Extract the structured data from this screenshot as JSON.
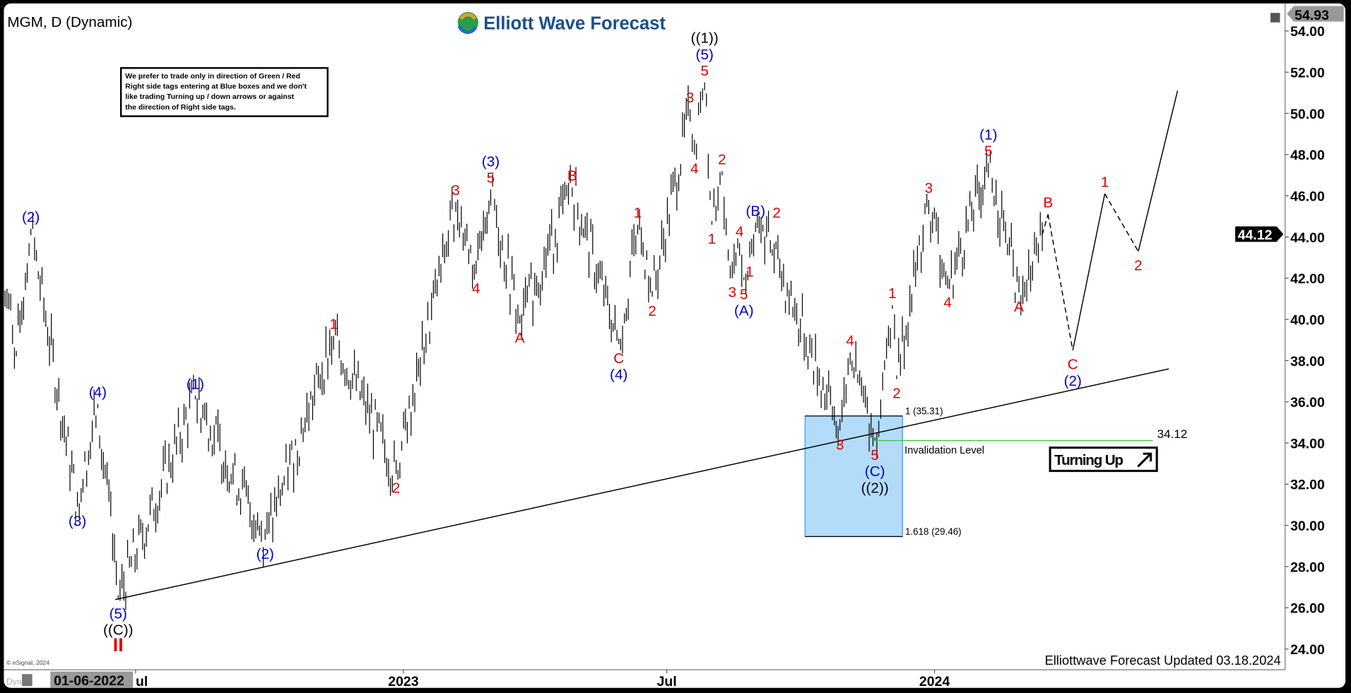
{
  "header": {
    "symbol_title": "MGM, D (Dynamic)",
    "logo_text": "Elliott Wave Forecast",
    "footer_text": "Elliottwave Forecast Updated 03.18.2024",
    "copyright": "© eSignal, 2024",
    "dyn_label": "Dyn",
    "cursor_date": "01-06-2022"
  },
  "note_box": {
    "lines": [
      "We prefer to trade only in direction of Green / Red",
      "Right side tags entering at Blue boxes and we don't",
      "like trading Turning up / down arrows or against",
      "the direction of Right side tags."
    ]
  },
  "chart_data": {
    "type": "ohlc",
    "title": "MGM, D (Dynamic)",
    "ylim": [
      23,
      55
    ],
    "y_ticks": [
      "54.00",
      "52.00",
      "50.00",
      "48.00",
      "46.00",
      "44.00",
      "42.00",
      "40.00",
      "38.00",
      "36.00",
      "34.00",
      "32.00",
      "30.00",
      "28.00",
      "26.00",
      "24.00"
    ],
    "x_ticks": [
      {
        "label": "ul",
        "date": "2022-07-01"
      },
      {
        "label": "2023",
        "date": "2023-01-01"
      },
      {
        "label": "Jul",
        "date": "2023-07-01"
      },
      {
        "label": "2024",
        "date": "2024-01-01"
      }
    ],
    "price_tags": {
      "high": "54.93",
      "last": "44.12"
    },
    "colors": {
      "red": "#e00000",
      "blue": "#0000cc",
      "black": "#000000",
      "box": "#b3dcfa",
      "green": "#33cc33"
    },
    "pivots": [
      {
        "date": "2022-04-01",
        "price": 42.5,
        "labels": []
      },
      {
        "date": "2022-04-10",
        "price": 38.2,
        "labels": []
      },
      {
        "date": "2022-04-20",
        "price": 44.4,
        "labels": [
          {
            "t": "(2)",
            "c": "blue"
          }
        ],
        "pos": "above"
      },
      {
        "date": "2022-05-22",
        "price": 30.9,
        "labels": [
          {
            "t": "(3)",
            "c": "blue"
          }
        ],
        "pos": "below"
      },
      {
        "date": "2022-06-05",
        "price": 35.9,
        "labels": [
          {
            "t": "(4)",
            "c": "blue"
          }
        ],
        "pos": "above"
      },
      {
        "date": "2022-06-19",
        "price": 26.4,
        "labels": [
          {
            "t": "(5)",
            "c": "blue"
          },
          {
            "t": "((C))",
            "c": "black"
          },
          {
            "t": "II",
            "c": "red"
          }
        ],
        "pos": "below"
      },
      {
        "date": "2022-08-11",
        "price": 36.3,
        "labels": [
          {
            "t": "(1)",
            "c": "blue"
          }
        ],
        "pos": "above"
      },
      {
        "date": "2022-09-28",
        "price": 29.3,
        "labels": [
          {
            "t": "(2)",
            "c": "blue"
          }
        ],
        "pos": "below"
      },
      {
        "date": "2022-11-14",
        "price": 39.2,
        "labels": [
          {
            "t": "1",
            "c": "red"
          }
        ],
        "pos": "above"
      },
      {
        "date": "2022-12-27",
        "price": 32.5,
        "labels": [
          {
            "t": "2",
            "c": "red"
          }
        ],
        "pos": "below"
      },
      {
        "date": "2023-02-06",
        "price": 45.7,
        "labels": [
          {
            "t": "3",
            "c": "red"
          }
        ],
        "pos": "above"
      },
      {
        "date": "2023-02-20",
        "price": 42.2,
        "labels": [
          {
            "t": "4",
            "c": "red"
          }
        ],
        "pos": "below"
      },
      {
        "date": "2023-03-02",
        "price": 46.3,
        "labels": [
          {
            "t": "(3)",
            "c": "blue"
          },
          {
            "t": "5",
            "c": "red"
          }
        ],
        "pos": "above"
      },
      {
        "date": "2023-03-22",
        "price": 39.8,
        "labels": [
          {
            "t": "A",
            "c": "red"
          }
        ],
        "pos": "below"
      },
      {
        "date": "2023-04-27",
        "price": 46.4,
        "labels": [
          {
            "t": "B",
            "c": "red"
          }
        ],
        "pos": "above"
      },
      {
        "date": "2023-05-29",
        "price": 38.8,
        "labels": [
          {
            "t": "C",
            "c": "red"
          },
          {
            "t": "(4)",
            "c": "blue"
          }
        ],
        "pos": "below"
      },
      {
        "date": "2023-06-11",
        "price": 44.6,
        "labels": [
          {
            "t": "1",
            "c": "red"
          }
        ],
        "pos": "above"
      },
      {
        "date": "2023-06-21",
        "price": 41.1,
        "labels": [
          {
            "t": "2",
            "c": "red"
          }
        ],
        "pos": "below"
      },
      {
        "date": "2023-07-17",
        "price": 50.2,
        "labels": [
          {
            "t": "3",
            "c": "red"
          }
        ],
        "pos": "above"
      },
      {
        "date": "2023-07-20",
        "price": 48.0,
        "labels": [
          {
            "t": "4",
            "c": "red"
          }
        ],
        "pos": "below"
      },
      {
        "date": "2023-07-27",
        "price": 51.5,
        "labels": [
          {
            "t": "((1))",
            "c": "black"
          },
          {
            "t": "(5)",
            "c": "blue"
          },
          {
            "t": "5",
            "c": "red"
          }
        ],
        "pos": "above"
      },
      {
        "date": "2023-08-01",
        "price": 44.6,
        "labels": [
          {
            "t": "1",
            "c": "red"
          }
        ],
        "pos": "below"
      },
      {
        "date": "2023-08-08",
        "price": 47.2,
        "labels": [
          {
            "t": "2",
            "c": "red"
          }
        ],
        "pos": "above"
      },
      {
        "date": "2023-08-15",
        "price": 42.0,
        "labels": [
          {
            "t": "3",
            "c": "red"
          }
        ],
        "pos": "below"
      },
      {
        "date": "2023-08-20",
        "price": 43.7,
        "labels": [
          {
            "t": "4",
            "c": "red"
          }
        ],
        "pos": "above"
      },
      {
        "date": "2023-08-23",
        "price": 41.9,
        "labels": [
          {
            "t": "5",
            "c": "red"
          },
          {
            "t": "(A)",
            "c": "blue"
          }
        ],
        "pos": "below"
      },
      {
        "date": "2023-08-27",
        "price": 43.0,
        "labels": [
          {
            "t": "1",
            "c": "red"
          }
        ],
        "pos": "below"
      },
      {
        "date": "2023-08-31",
        "price": 44.7,
        "labels": [
          {
            "t": "(B)",
            "c": "blue"
          }
        ],
        "pos": "above"
      },
      {
        "date": "2023-09-05",
        "price": 44.6,
        "labels": [
          {
            "t": "2",
            "c": "red"
          }
        ],
        "pos": "above"
      },
      {
        "date": "2023-10-28",
        "price": 34.6,
        "labels": [
          {
            "t": "3",
            "c": "red"
          }
        ],
        "pos": "below"
      },
      {
        "date": "2023-11-04",
        "price": 38.4,
        "labels": [
          {
            "t": "4",
            "c": "red"
          }
        ],
        "pos": "above"
      },
      {
        "date": "2023-11-21",
        "price": 34.1,
        "labels": [
          {
            "t": "5",
            "c": "red"
          },
          {
            "t": "(C)",
            "c": "blue"
          },
          {
            "t": "((2))",
            "c": "black"
          }
        ],
        "pos": "below"
      },
      {
        "date": "2023-12-03",
        "price": 40.7,
        "labels": [
          {
            "t": "1",
            "c": "red"
          }
        ],
        "pos": "above"
      },
      {
        "date": "2023-12-06",
        "price": 37.1,
        "labels": [
          {
            "t": "2",
            "c": "red"
          }
        ],
        "pos": "below"
      },
      {
        "date": "2023-12-28",
        "price": 45.8,
        "labels": [
          {
            "t": "3",
            "c": "red"
          }
        ],
        "pos": "above"
      },
      {
        "date": "2024-01-10",
        "price": 41.5,
        "labels": [
          {
            "t": "4",
            "c": "red"
          }
        ],
        "pos": "below"
      },
      {
        "date": "2024-02-07",
        "price": 47.6,
        "labels": [
          {
            "t": "(1)",
            "c": "blue"
          },
          {
            "t": "5",
            "c": "red"
          }
        ],
        "pos": "above"
      },
      {
        "date": "2024-02-28",
        "price": 41.3,
        "labels": [
          {
            "t": "A",
            "c": "red"
          }
        ],
        "pos": "below"
      },
      {
        "date": "2024-03-15",
        "price": 44.12,
        "labels": []
      }
    ],
    "projection": [
      {
        "date": "2024-03-15",
        "price": 44.12,
        "labels": [],
        "style": "dashed"
      },
      {
        "date": "2024-03-19",
        "price": 45.1,
        "labels": [
          {
            "t": "B",
            "c": "red"
          }
        ],
        "pos": "above",
        "style": "dashed"
      },
      {
        "date": "2024-04-05",
        "price": 38.5,
        "labels": [
          {
            "t": "C",
            "c": "red"
          },
          {
            "t": "(2)",
            "c": "blue"
          }
        ],
        "pos": "below",
        "style": "solid"
      },
      {
        "date": "2024-04-27",
        "price": 46.1,
        "labels": [
          {
            "t": "1",
            "c": "red"
          }
        ],
        "pos": "above",
        "style": "dashed"
      },
      {
        "date": "2024-05-20",
        "price": 43.3,
        "labels": [
          {
            "t": "2",
            "c": "red"
          }
        ],
        "pos": "below",
        "style": "solid"
      },
      {
        "date": "2024-06-16",
        "price": 51.1,
        "labels": []
      }
    ],
    "trendline": [
      {
        "date": "2022-06-17",
        "price": 26.4
      },
      {
        "date": "2024-06-10",
        "price": 37.6
      }
    ],
    "blue_box": {
      "from": "2023-10-04",
      "to": "2023-12-10",
      "top": 35.31,
      "bottom": 29.46,
      "top_label": "1 (35.31)",
      "bottom_label": "1.618 (29.46)"
    },
    "invalidation": {
      "price": 34.12,
      "from": "2023-11-21",
      "to": "2024-05-30",
      "label": "Invalidation Level",
      "value_label": "34.12"
    },
    "turning_tag": "Turning Up"
  }
}
